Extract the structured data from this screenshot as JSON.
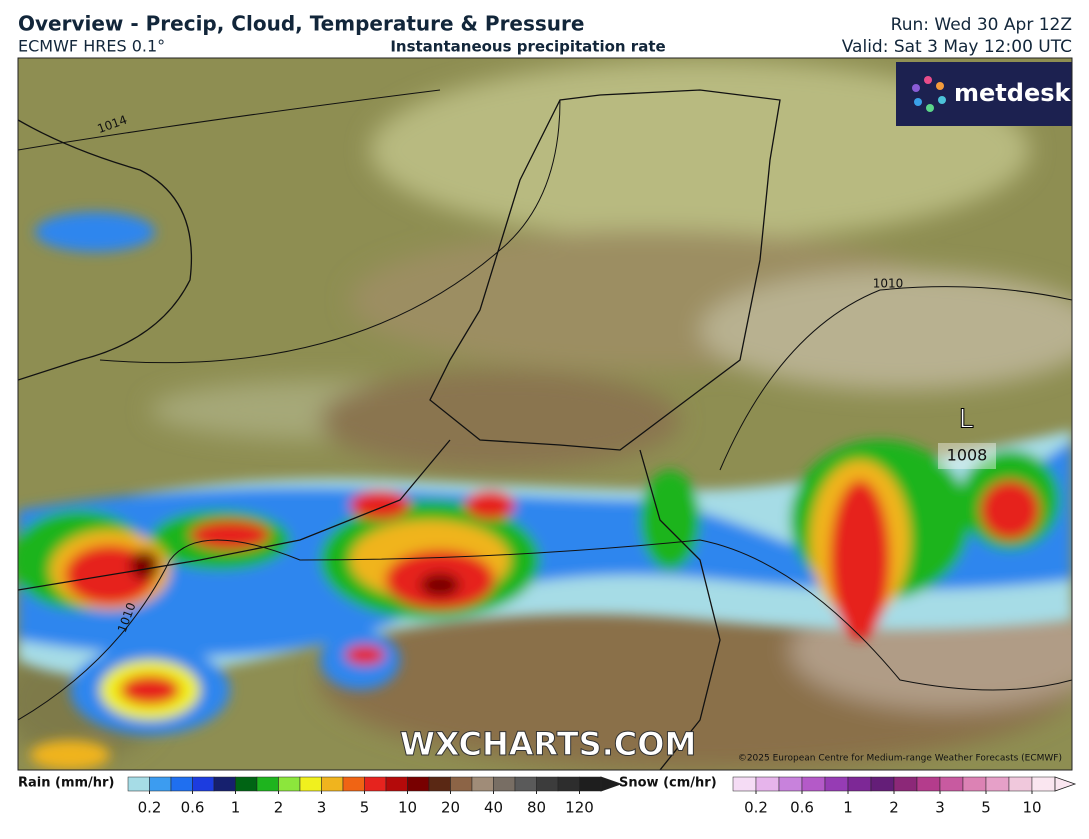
{
  "header": {
    "title": "Overview - Precip, Cloud, Temperature & Pressure",
    "model": "ECMWF HRES 0.1°",
    "subtitle": "Instantaneous precipitation rate",
    "run": "Run: Wed 30 Apr 12Z",
    "valid": "Valid: Sat 3 May 12:00 UTC"
  },
  "map": {
    "logo": "metdesk",
    "isobars": [
      "1014",
      "1010",
      "1010"
    ],
    "low": {
      "symbol": "L",
      "pressure": "1008"
    },
    "watermark": "WXCHARTS.COM",
    "copyright": "©2025 European Centre for Medium-range Weather Forecasts (ECMWF)"
  },
  "legend": {
    "rain": {
      "label": "Rain (mm/hr)",
      "ticks": [
        "0.2",
        "0.6",
        "1",
        "2",
        "3",
        "5",
        "10",
        "20",
        "40",
        "80",
        "120"
      ],
      "colors": [
        "#a6dce6",
        "#3c9cf0",
        "#1f6ff0",
        "#1c3ce0",
        "#16206e",
        "#006414",
        "#1eb41e",
        "#8ce63c",
        "#f0f01e",
        "#f0b41e",
        "#f06414",
        "#e6231e",
        "#b40a0a",
        "#780000",
        "#5a2814",
        "#8c6446",
        "#a08c78",
        "#786e64",
        "#5a5a5a",
        "#3c3c3c",
        "#2d2d2d",
        "#1e1e1e"
      ]
    },
    "snow": {
      "label": "Snow (cm/hr)",
      "ticks": [
        "0.2",
        "0.6",
        "1",
        "2",
        "3",
        "5",
        "10"
      ],
      "colors": [
        "#f5dcf5",
        "#e6b4eb",
        "#c882dc",
        "#b45ac8",
        "#963cb4",
        "#7d2896",
        "#641e78",
        "#8c2878",
        "#b43c8c",
        "#c85aa0",
        "#dc82b4",
        "#e6a0c8",
        "#f0c8dc",
        "#fae6f0"
      ]
    }
  }
}
